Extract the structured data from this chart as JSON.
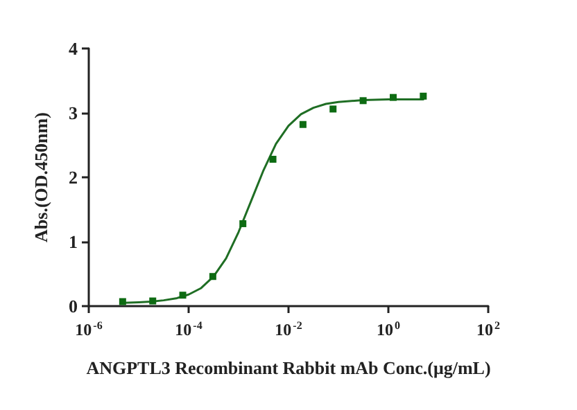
{
  "chart_data": {
    "type": "scatter",
    "xlabel": "ANGPTL3 Recombinant Rabbit mAb Conc.(μg/mL)",
    "ylabel": "Abs.(OD.450nm)",
    "log": "x",
    "xlim": [
      1e-06,
      100
    ],
    "xticks": [
      {
        "value": 1e-06,
        "label": "10$^{-6}$"
      },
      {
        "value": 0.0001,
        "label": "10$^{-4}$"
      },
      {
        "value": 0.01,
        "label": "10$^{-2}$"
      },
      {
        "value": 1,
        "label": "10$^{0}$"
      },
      {
        "value": 100,
        "label": "10$^{2}$"
      }
    ],
    "ylim": [
      0,
      4
    ],
    "yticks": [
      0,
      1,
      2,
      3,
      4
    ],
    "grid": false,
    "series": [
      {
        "color": "#0d6b12",
        "marker": "square",
        "x": [
          4.77e-06,
          1.91e-05,
          7.63e-05,
          0.000305,
          0.00122,
          0.00488,
          0.0195,
          0.078,
          0.3125,
          1.25,
          5
        ],
        "values": [
          0.07,
          0.08,
          0.17,
          0.46,
          1.28,
          2.28,
          2.82,
          3.06,
          3.19,
          3.24,
          3.26
        ]
      },
      {
        "type": "line",
        "color": "#1f6e24",
        "marker": "none",
        "x": [
          5e-06,
          1e-05,
          1.78e-05,
          3.16e-05,
          5.62e-05,
          0.0001,
          0.000178,
          0.000316,
          0.000562,
          0.001,
          0.00178,
          0.00316,
          0.00562,
          0.01,
          0.0178,
          0.0316,
          0.0562,
          0.1,
          0.316,
          1,
          5
        ],
        "values": [
          0.05,
          0.06,
          0.07,
          0.09,
          0.12,
          0.18,
          0.28,
          0.46,
          0.74,
          1.15,
          1.63,
          2.11,
          2.52,
          2.8,
          2.98,
          3.08,
          3.14,
          3.17,
          3.2,
          3.21,
          3.21
        ]
      }
    ]
  }
}
